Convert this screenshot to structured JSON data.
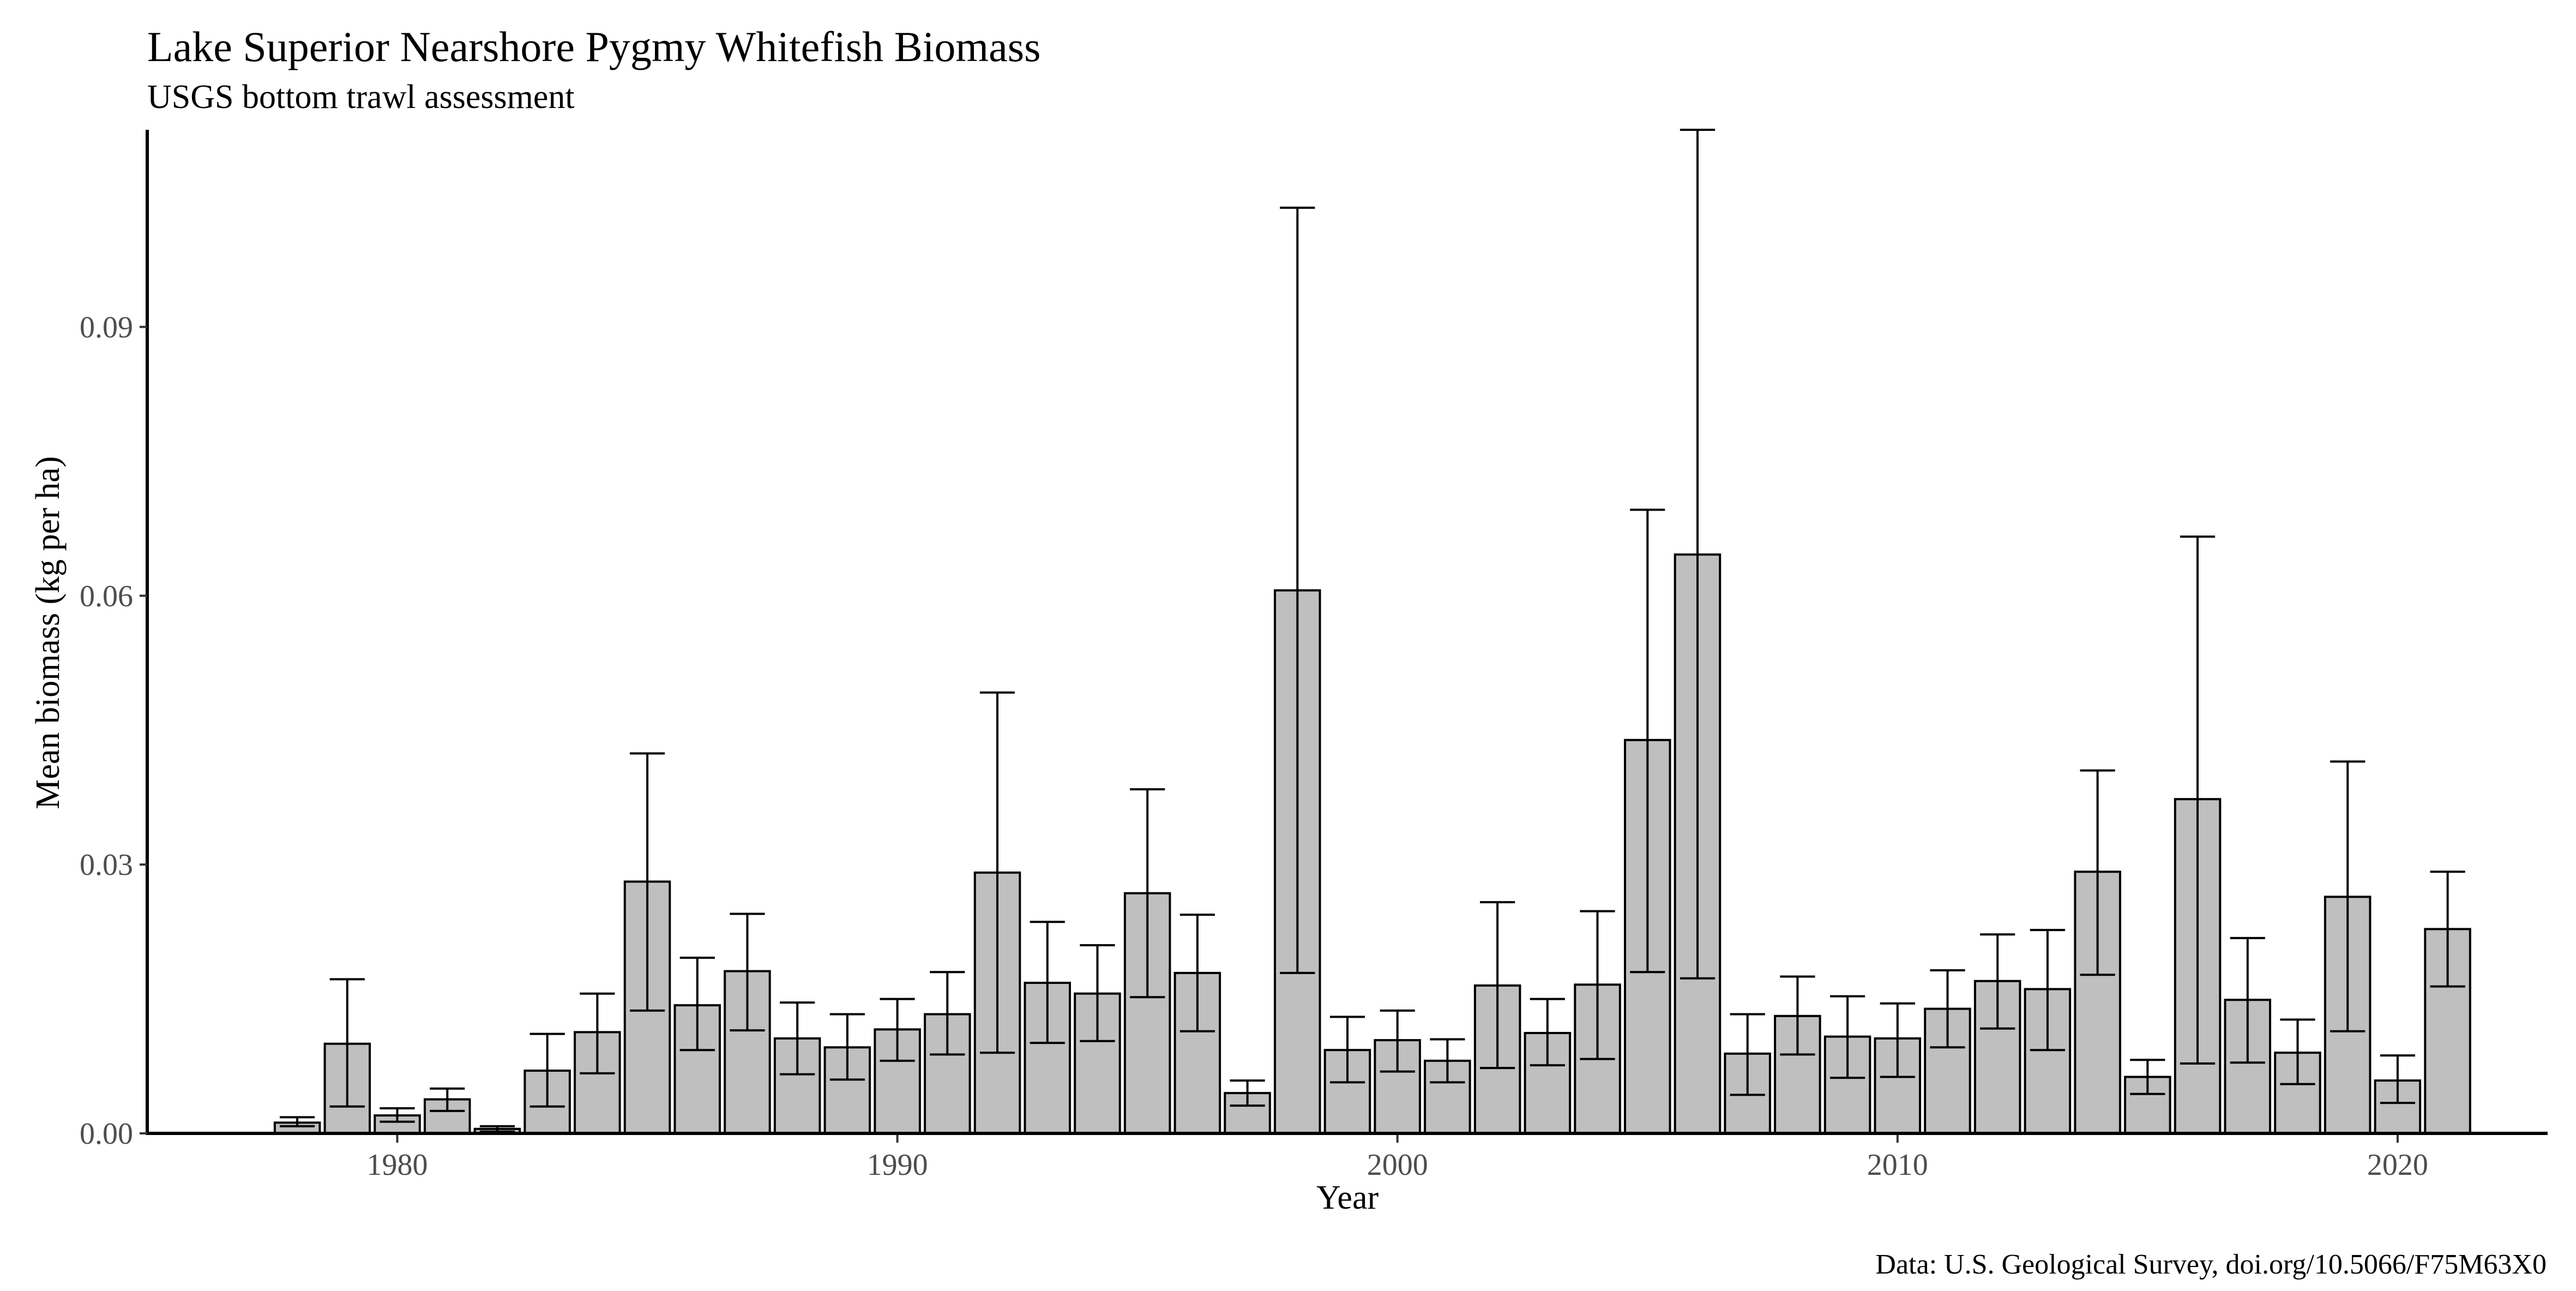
{
  "chart_data": {
    "type": "bar",
    "title": "Lake Superior Nearshore Pygmy Whitefish Biomass",
    "subtitle": "USGS bottom trawl assessment",
    "xlabel": "Year",
    "ylabel": "Mean biomass (kg per ha)",
    "caption": "Data: U.S. Geological Survey, doi.org/10.5066/F75M63X0",
    "xlim": [
      1975,
      2023
    ],
    "ylim": [
      0,
      0.112
    ],
    "x_ticks": [
      1980,
      1990,
      2000,
      2010,
      2020
    ],
    "x_tick_labels": [
      "1980",
      "1990",
      "2000",
      "2010",
      "2020"
    ],
    "y_ticks": [
      0,
      0.03,
      0.06,
      0.09
    ],
    "y_tick_labels": [
      "0.00",
      "0.03",
      "0.06",
      "0.09"
    ],
    "grid": false,
    "legend": "none",
    "bar_fill_color": "#bfbfbf",
    "bar_outline_color": "#000000",
    "series": [
      {
        "years": [
          1978,
          1979,
          1980,
          1981,
          1982,
          1983,
          1984,
          1985,
          1986,
          1987,
          1988,
          1989,
          1990,
          1991,
          1992,
          1993,
          1994,
          1995,
          1996,
          1997,
          1998,
          1999,
          2000,
          2001,
          2002,
          2003,
          2004,
          2005,
          2006,
          2007,
          2008,
          2009,
          2010,
          2011,
          2012,
          2013,
          2014,
          2015,
          2016,
          2017,
          2018,
          2019,
          2020,
          2021
        ],
        "values": [
          0.0012,
          0.01,
          0.002,
          0.0038,
          0.0005,
          0.007,
          0.0113,
          0.0281,
          0.0143,
          0.0181,
          0.0106,
          0.0096,
          0.0116,
          0.0133,
          0.0291,
          0.0168,
          0.0156,
          0.0268,
          0.0179,
          0.0045,
          0.0606,
          0.0093,
          0.0104,
          0.0081,
          0.0165,
          0.0112,
          0.0166,
          0.0439,
          0.0646,
          0.0089,
          0.0131,
          0.0108,
          0.0106,
          0.0139,
          0.017,
          0.0161,
          0.0292,
          0.0063,
          0.0373,
          0.0149,
          0.009,
          0.0264,
          0.0059,
          0.0228
        ],
        "error_low": [
          0.0008,
          0.003,
          0.0013,
          0.0025,
          0.0002,
          0.003,
          0.0067,
          0.0137,
          0.0093,
          0.0115,
          0.0066,
          0.006,
          0.0081,
          0.0088,
          0.009,
          0.0101,
          0.0103,
          0.0152,
          0.0114,
          0.0031,
          0.0179,
          0.0057,
          0.0069,
          0.0057,
          0.0073,
          0.0076,
          0.0083,
          0.018,
          0.0173,
          0.0043,
          0.0088,
          0.0062,
          0.0063,
          0.0096,
          0.0117,
          0.0093,
          0.0177,
          0.0044,
          0.0078,
          0.0079,
          0.0055,
          0.0114,
          0.0034,
          0.0164
        ],
        "error_high": [
          0.0018,
          0.0172,
          0.0028,
          0.005,
          0.0008,
          0.0111,
          0.0156,
          0.0424,
          0.0196,
          0.0245,
          0.0146,
          0.0133,
          0.015,
          0.018,
          0.0492,
          0.0236,
          0.021,
          0.0384,
          0.0244,
          0.0059,
          0.1033,
          0.013,
          0.0137,
          0.0105,
          0.0258,
          0.015,
          0.0248,
          0.0696,
          0.112,
          0.0133,
          0.0175,
          0.0153,
          0.0145,
          0.0182,
          0.0222,
          0.0227,
          0.0405,
          0.0082,
          0.0666,
          0.0218,
          0.0127,
          0.0415,
          0.0087,
          0.0292
        ]
      }
    ]
  }
}
